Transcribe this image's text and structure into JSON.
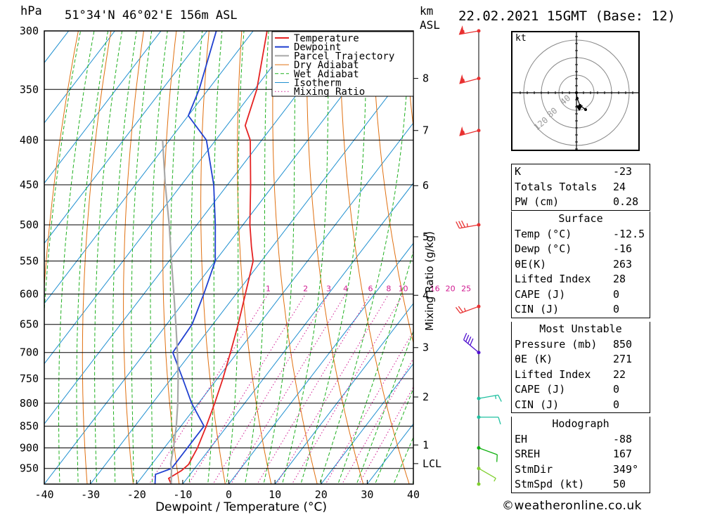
{
  "header": {
    "pressure_unit": "hPa",
    "location": "51°34'N  46°02'E  156m  ASL",
    "height_unit": "km",
    "height_ref": "ASL",
    "datetime": "22.02.2021  15GMT  (Base: 12)"
  },
  "copyright": "©weatheronline.co.uk",
  "chart_data": {
    "type": "line",
    "chart_kind": "skew-T log-p sounding",
    "xlabel": "Dewpoint / Temperature (°C)",
    "ylabel": "Mixing Ratio (g/kg)",
    "x_ticks": [
      -40,
      -30,
      -20,
      -10,
      0,
      10,
      20,
      30,
      40
    ],
    "pressure_levels": [
      300,
      350,
      400,
      450,
      500,
      550,
      600,
      650,
      700,
      750,
      800,
      850,
      900,
      950
    ],
    "pressure_range_hpa": [
      300,
      990
    ],
    "height_ticks_km": [
      {
        "label": "8",
        "p": 340
      },
      {
        "label": "7",
        "p": 390
      },
      {
        "label": "6",
        "p": 451
      },
      {
        "label": "5",
        "p": 516
      },
      {
        "label": "4",
        "p": 602
      },
      {
        "label": "3",
        "p": 691
      },
      {
        "label": "2",
        "p": 787
      },
      {
        "label": "1",
        "p": 893
      },
      {
        "label": "LCL",
        "p": 938
      }
    ],
    "mixing_ratio_labels": [
      "1",
      "2",
      "3",
      "4",
      "6",
      "8",
      "10",
      "16",
      "20",
      "25"
    ],
    "legend": [
      "Temperature",
      "Dewpoint",
      "Parcel Trajectory",
      "Dry Adiabat",
      "Wet Adiabat",
      "Isotherm",
      "Mixing Ratio"
    ],
    "colors": {
      "temperature": "#e52222",
      "dewpoint": "#2040d0",
      "parcel": "#a8a8a8",
      "dry_adiabat": "#e07010",
      "wet_adiabat": "#20b020",
      "isotherm": "#2090d0",
      "mixing_ratio": "#d01890",
      "wind": "#e83030"
    },
    "series": [
      {
        "name": "Temperature",
        "points": [
          {
            "p": 990,
            "t": -12.5
          },
          {
            "p": 975,
            "t": -14.0
          },
          {
            "p": 955,
            "t": -12.5
          },
          {
            "p": 940,
            "t": -12.0
          },
          {
            "p": 900,
            "t": -12.8
          },
          {
            "p": 850,
            "t": -14.5
          },
          {
            "p": 800,
            "t": -16.5
          },
          {
            "p": 750,
            "t": -18.8
          },
          {
            "p": 700,
            "t": -21.5
          },
          {
            "p": 650,
            "t": -24.5
          },
          {
            "p": 600,
            "t": -28.0
          },
          {
            "p": 550,
            "t": -31.8
          },
          {
            "p": 530,
            "t": -34.5
          },
          {
            "p": 500,
            "t": -38.5
          },
          {
            "p": 450,
            "t": -45.0
          },
          {
            "p": 400,
            "t": -52.5
          },
          {
            "p": 385,
            "t": -56.0
          },
          {
            "p": 350,
            "t": -59.5
          },
          {
            "p": 300,
            "t": -67.0
          }
        ]
      },
      {
        "name": "Dewpoint",
        "points": [
          {
            "p": 990,
            "t": -16.0
          },
          {
            "p": 965,
            "t": -17.5
          },
          {
            "p": 950,
            "t": -15.0
          },
          {
            "p": 900,
            "t": -15.0
          },
          {
            "p": 850,
            "t": -15.0
          },
          {
            "p": 800,
            "t": -21.5
          },
          {
            "p": 750,
            "t": -27.5
          },
          {
            "p": 700,
            "t": -34.0
          },
          {
            "p": 650,
            "t": -34.5
          },
          {
            "p": 600,
            "t": -37.0
          },
          {
            "p": 550,
            "t": -40.0
          },
          {
            "p": 500,
            "t": -46.0
          },
          {
            "p": 450,
            "t": -53.0
          },
          {
            "p": 400,
            "t": -62.0
          },
          {
            "p": 375,
            "t": -70.0
          },
          {
            "p": 350,
            "t": -72.0
          },
          {
            "p": 300,
            "t": -78.0
          }
        ]
      },
      {
        "name": "Parcel Trajectory",
        "points": [
          {
            "p": 990,
            "t": -12.5
          },
          {
            "p": 950,
            "t": -15.0
          },
          {
            "p": 938,
            "t": -16.0
          },
          {
            "p": 900,
            "t": -18.0
          },
          {
            "p": 850,
            "t": -21.0
          },
          {
            "p": 800,
            "t": -24.5
          },
          {
            "p": 750,
            "t": -28.5
          },
          {
            "p": 700,
            "t": -33.0
          },
          {
            "p": 650,
            "t": -38.0
          },
          {
            "p": 600,
            "t": -43.5
          },
          {
            "p": 550,
            "t": -49.5
          },
          {
            "p": 500,
            "t": -56.0
          },
          {
            "p": 450,
            "t": -63.5
          },
          {
            "p": 400,
            "t": -71.5
          }
        ]
      }
    ],
    "wind_barbs": [
      {
        "p": 300,
        "dir": 260,
        "kt": 55
      },
      {
        "p": 340,
        "dir": 255,
        "kt": 55
      },
      {
        "p": 390,
        "dir": 255,
        "kt": 55
      },
      {
        "p": 500,
        "dir": 260,
        "kt": 35
      },
      {
        "p": 620,
        "dir": 250,
        "kt": 25
      },
      {
        "p": 700,
        "dir": 310,
        "kt": 40
      },
      {
        "p": 790,
        "dir": 80,
        "kt": 15
      },
      {
        "p": 830,
        "dir": 90,
        "kt": 10
      },
      {
        "p": 900,
        "dir": 110,
        "kt": 10
      },
      {
        "p": 950,
        "dir": 120,
        "kt": 5
      },
      {
        "p": 990,
        "dir": 0,
        "kt": 0
      }
    ]
  },
  "hodograph": {
    "unit_label": "kt",
    "ring_labels": [
      "40",
      "80",
      "120"
    ],
    "points": [
      [
        0,
        0
      ],
      [
        1,
        -8
      ],
      [
        5,
        -18
      ],
      [
        13,
        -24
      ]
    ],
    "storm_motion": [
      4,
      -22
    ]
  },
  "indices": {
    "top": [
      {
        "label": "K",
        "value": "-23"
      },
      {
        "label": "Totals Totals",
        "value": "24"
      },
      {
        "label": "PW (cm)",
        "value": "0.28"
      }
    ],
    "surface": {
      "title": "Surface",
      "rows": [
        {
          "label": "Temp (°C)",
          "value": "-12.5"
        },
        {
          "label": "Dewp (°C)",
          "value": "-16"
        },
        {
          "label": "θE(K)",
          "value": "263"
        },
        {
          "label": "Lifted Index",
          "value": "28"
        },
        {
          "label": "CAPE (J)",
          "value": "0"
        },
        {
          "label": "CIN (J)",
          "value": "0"
        }
      ]
    },
    "most_unstable": {
      "title": "Most Unstable",
      "rows": [
        {
          "label": "Pressure (mb)",
          "value": "850"
        },
        {
          "label": "θE (K)",
          "value": "271"
        },
        {
          "label": "Lifted Index",
          "value": "22"
        },
        {
          "label": "CAPE (J)",
          "value": "0"
        },
        {
          "label": "CIN (J)",
          "value": "0"
        }
      ]
    },
    "hodograph": {
      "title": "Hodograph",
      "rows": [
        {
          "label": "EH",
          "value": "-88"
        },
        {
          "label": "SREH",
          "value": "167"
        },
        {
          "label": "StmDir",
          "value": "349°"
        },
        {
          "label": "StmSpd (kt)",
          "value": "50"
        }
      ]
    }
  }
}
